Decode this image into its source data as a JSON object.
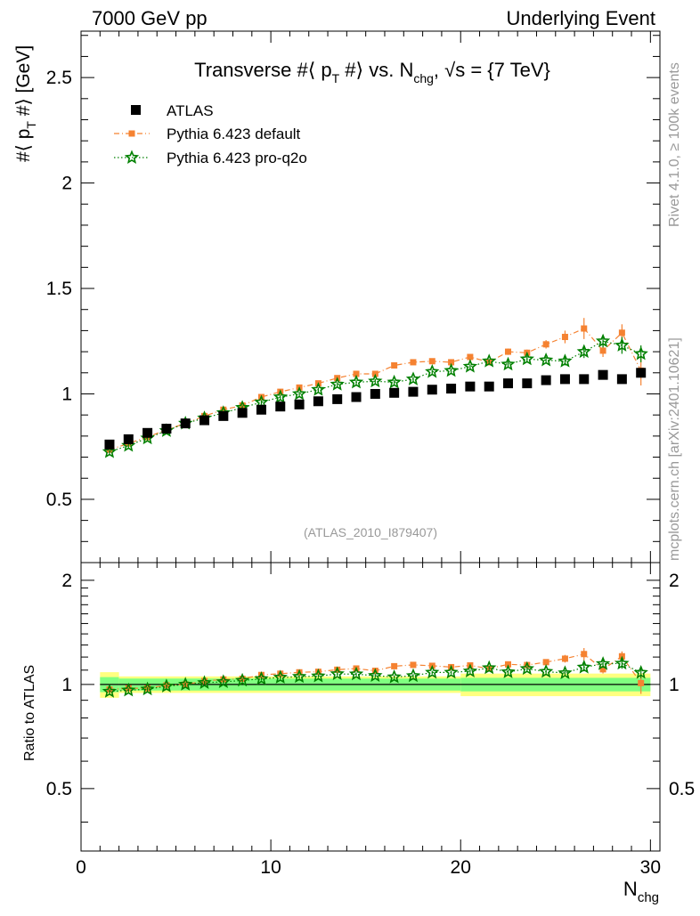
{
  "header": {
    "left": "7000 GeV pp",
    "right": "Underlying Event"
  },
  "side": {
    "rivet": "Rivet 4.1.0, ≥ 100k events",
    "mcplots": "mcplots.cern.ch [arXiv:2401.10621]"
  },
  "chart_data": {
    "type": "scatter",
    "title_main": "Transverse #⟨ p",
    "title_sub": "T",
    "title_mid": " #⟩ vs. N",
    "title_sub2": "chg",
    "title_end": ", √s = {7 TeV}",
    "ylabel": "#⟨ p_T #⟩ [GeV]",
    "xlabel": "N",
    "xlabel_sub": "chg",
    "ratio_ylabel": "Ratio to ATLAS",
    "watermark": "(ATLAS_2010_I879407)",
    "xlim": [
      0,
      30.5
    ],
    "ylim": [
      0.2,
      2.72
    ],
    "ratio_ylim": [
      0.33,
      2.25
    ],
    "x_ticks": [
      "0",
      "10",
      "20",
      "30"
    ],
    "y_ticks": [
      "0.5",
      "1",
      "1.5",
      "2",
      "2.5"
    ],
    "ratio_y_ticks": [
      "0.5",
      "1",
      "2"
    ],
    "legend": [
      "ATLAS",
      "Pythia 6.423 default",
      "Pythia 6.423 pro-q2o"
    ],
    "colors": {
      "atlas": "#000000",
      "default": "#f58231",
      "proq2o": "#008000",
      "band_inner": "#80ff80",
      "band_outer": "#ffff80"
    },
    "x": [
      1.5,
      2.5,
      3.5,
      4.5,
      5.5,
      6.5,
      7.5,
      8.5,
      9.5,
      10.5,
      11.5,
      12.5,
      13.5,
      14.5,
      15.5,
      16.5,
      17.5,
      18.5,
      19.5,
      20.5,
      21.5,
      22.5,
      23.5,
      24.5,
      25.5,
      26.5,
      27.5,
      28.5,
      29.5
    ],
    "series": [
      {
        "name": "ATLAS",
        "values": [
          0.76,
          0.785,
          0.815,
          0.835,
          0.86,
          0.875,
          0.895,
          0.91,
          0.925,
          0.94,
          0.95,
          0.965,
          0.975,
          0.985,
          1.0,
          1.005,
          1.01,
          1.02,
          1.025,
          1.035,
          1.035,
          1.05,
          1.05,
          1.065,
          1.07,
          1.07,
          1.09,
          1.07,
          1.1
        ]
      },
      {
        "name": "Pythia 6.423 default",
        "values": [
          0.735,
          0.765,
          0.795,
          0.83,
          0.86,
          0.895,
          0.925,
          0.945,
          0.985,
          1.01,
          1.03,
          1.05,
          1.075,
          1.095,
          1.095,
          1.135,
          1.15,
          1.155,
          1.15,
          1.175,
          1.15,
          1.2,
          1.195,
          1.235,
          1.27,
          1.31,
          1.205,
          1.29,
          1.11
        ]
      },
      {
        "name": "Pythia 6.423 pro-q2o",
        "values": [
          0.725,
          0.755,
          0.79,
          0.825,
          0.86,
          0.885,
          0.91,
          0.935,
          0.96,
          0.985,
          1.0,
          1.02,
          1.045,
          1.055,
          1.06,
          1.055,
          1.07,
          1.105,
          1.11,
          1.13,
          1.155,
          1.14,
          1.165,
          1.16,
          1.155,
          1.2,
          1.25,
          1.23,
          1.19
        ]
      }
    ],
    "errors": {
      "default": [
        0.01,
        0.01,
        0.01,
        0.01,
        0.01,
        0.01,
        0.01,
        0.01,
        0.01,
        0.01,
        0.01,
        0.01,
        0.01,
        0.01,
        0.01,
        0.01,
        0.01,
        0.01,
        0.01,
        0.01,
        0.01,
        0.015,
        0.015,
        0.02,
        0.03,
        0.05,
        0.03,
        0.04,
        0.07
      ],
      "proq2o": [
        0.01,
        0.01,
        0.01,
        0.01,
        0.01,
        0.01,
        0.01,
        0.01,
        0.01,
        0.01,
        0.01,
        0.01,
        0.01,
        0.01,
        0.01,
        0.01,
        0.01,
        0.01,
        0.01,
        0.01,
        0.01,
        0.015,
        0.015,
        0.015,
        0.02,
        0.03,
        0.03,
        0.04,
        0.04
      ]
    },
    "ratio": {
      "default": [
        0.967,
        0.975,
        0.975,
        0.994,
        1.0,
        1.023,
        1.034,
        1.038,
        1.065,
        1.074,
        1.084,
        1.088,
        1.103,
        1.112,
        1.095,
        1.129,
        1.139,
        1.132,
        1.122,
        1.135,
        1.111,
        1.143,
        1.138,
        1.16,
        1.187,
        1.224,
        1.106,
        1.206,
        1.009
      ],
      "proq2o": [
        0.954,
        0.962,
        0.969,
        0.988,
        1.0,
        1.011,
        1.017,
        1.027,
        1.038,
        1.048,
        1.053,
        1.057,
        1.072,
        1.071,
        1.06,
        1.05,
        1.059,
        1.083,
        1.083,
        1.092,
        1.116,
        1.086,
        1.11,
        1.089,
        1.079,
        1.121,
        1.147,
        1.15,
        1.082
      ]
    },
    "ratio_errors": {
      "default": [
        0.012,
        0.012,
        0.012,
        0.012,
        0.012,
        0.012,
        0.012,
        0.012,
        0.012,
        0.012,
        0.012,
        0.012,
        0.012,
        0.012,
        0.012,
        0.012,
        0.012,
        0.012,
        0.012,
        0.012,
        0.015,
        0.015,
        0.02,
        0.02,
        0.03,
        0.05,
        0.03,
        0.04,
        0.07
      ],
      "proq2o": [
        0.012,
        0.012,
        0.012,
        0.012,
        0.012,
        0.012,
        0.012,
        0.012,
        0.012,
        0.012,
        0.012,
        0.012,
        0.012,
        0.012,
        0.012,
        0.012,
        0.012,
        0.012,
        0.012,
        0.012,
        0.015,
        0.015,
        0.015,
        0.015,
        0.02,
        0.03,
        0.03,
        0.04,
        0.04
      ]
    },
    "band": {
      "bins": [
        [
          1,
          2
        ],
        [
          2,
          20
        ],
        [
          20,
          30
        ]
      ],
      "inner": [
        0.05,
        0.04,
        0.045
      ],
      "outer": [
        0.085,
        0.055,
        0.075
      ]
    }
  }
}
